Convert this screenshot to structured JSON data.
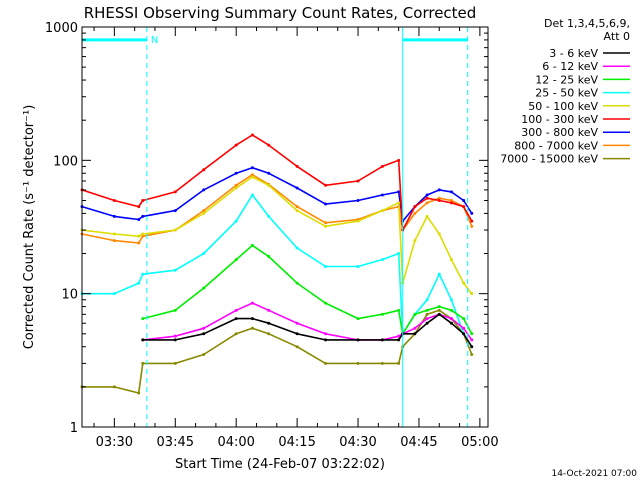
{
  "chart_data": {
    "type": "line",
    "title": "RHESSI Observing Summary Count Rates, Corrected",
    "xlabel": "Start Time (24-Feb-07 03:22:02)",
    "ylabel": "Corrected Count Rate (s⁻¹ detector⁻¹)",
    "y_scale": "log",
    "ylim": [
      1,
      1000
    ],
    "xlim": [
      "03:22:02",
      "05:02:00"
    ],
    "x_ticks": [
      "03:30",
      "03:45",
      "04:00",
      "04:15",
      "04:30",
      "04:45",
      "05:00"
    ],
    "y_ticks": [
      1,
      10,
      100,
      1000
    ],
    "y_tick_labels": [
      "1",
      "10",
      "100",
      "1000"
    ],
    "legend_header": [
      "Det 1,3,4,5,6,9,",
      "Att 0"
    ],
    "legend_position": "top-right, outside plot",
    "markers": {
      "solid_lines": [
        "03:22:02",
        "04:41:00"
      ],
      "dashed_lines": [
        "03:38:00",
        "04:57:00"
      ],
      "marker_label": "N",
      "flag_bar_level": 800,
      "flag_bar_intervals": [
        [
          "03:22:02",
          "03:38:00"
        ],
        [
          "04:41:00",
          "04:57:00"
        ]
      ]
    },
    "x": [
      "03:22:02",
      "03:30",
      "03:36",
      "03:37",
      "03:45",
      "03:52",
      "04:00",
      "04:04",
      "04:08",
      "04:15",
      "04:22",
      "04:30",
      "04:36",
      "04:40",
      "04:41",
      "04:44",
      "04:47",
      "04:50",
      "04:53",
      "04:56",
      "04:58"
    ],
    "series": [
      {
        "name": "3 - 6 keV",
        "color": "#000000",
        "values": [
          null,
          null,
          null,
          4.5,
          4.5,
          5,
          6.5,
          6.5,
          6,
          5,
          4.5,
          4.5,
          4.5,
          4.5,
          5,
          5,
          6,
          7,
          6,
          5,
          4
        ]
      },
      {
        "name": "6 - 12 keV",
        "color": "#ff00ff",
        "values": [
          null,
          null,
          null,
          4.5,
          4.8,
          5.5,
          7.5,
          8.5,
          7.5,
          6,
          5,
          4.5,
          4.5,
          4.8,
          5,
          5.5,
          6.5,
          7,
          6.5,
          5.5,
          4.5
        ]
      },
      {
        "name": "12 - 25 keV",
        "color": "#00ee00",
        "values": [
          null,
          null,
          null,
          6.5,
          7.5,
          11,
          18,
          23,
          19,
          12,
          8.5,
          6.5,
          7,
          7.5,
          5,
          7,
          7.5,
          8,
          7.5,
          6.5,
          5
        ]
      },
      {
        "name": "25 - 50 keV",
        "color": "#00ffff",
        "values": [
          10,
          10,
          12,
          14,
          15,
          20,
          35,
          55,
          38,
          22,
          16,
          16,
          18,
          20,
          5,
          7,
          9,
          14,
          9,
          5,
          4
        ]
      },
      {
        "name": "50 - 100 keV",
        "color": "#dddd00",
        "values": [
          30,
          28,
          27,
          28,
          30,
          40,
          62,
          75,
          65,
          42,
          32,
          35,
          42,
          48,
          12,
          25,
          38,
          28,
          18,
          12,
          10
        ]
      },
      {
        "name": "100 - 300 keV",
        "color": "#ff0000",
        "values": [
          60,
          50,
          45,
          50,
          58,
          85,
          130,
          155,
          130,
          90,
          65,
          70,
          90,
          100,
          30,
          45,
          52,
          50,
          48,
          45,
          35
        ]
      },
      {
        "name": "300 - 800 keV",
        "color": "#0000ff",
        "values": [
          45,
          38,
          36,
          38,
          42,
          60,
          80,
          88,
          80,
          62,
          47,
          50,
          55,
          58,
          35,
          45,
          55,
          60,
          58,
          50,
          40
        ]
      },
      {
        "name": "800 - 7000 keV",
        "color": "#ff8800",
        "values": [
          28,
          25,
          24,
          27,
          30,
          42,
          65,
          78,
          66,
          45,
          34,
          36,
          42,
          45,
          30,
          40,
          48,
          52,
          50,
          45,
          32
        ]
      },
      {
        "name": "7000 - 15000 keV",
        "color": "#888800",
        "values": [
          2,
          2,
          1.8,
          3,
          3,
          3.5,
          5,
          5.5,
          5,
          4,
          3,
          3,
          3,
          3,
          4,
          5,
          7,
          7.5,
          6.5,
          5,
          3.5
        ]
      }
    ]
  },
  "footer": {
    "timestamp": "14-Oct-2021 07:00"
  }
}
